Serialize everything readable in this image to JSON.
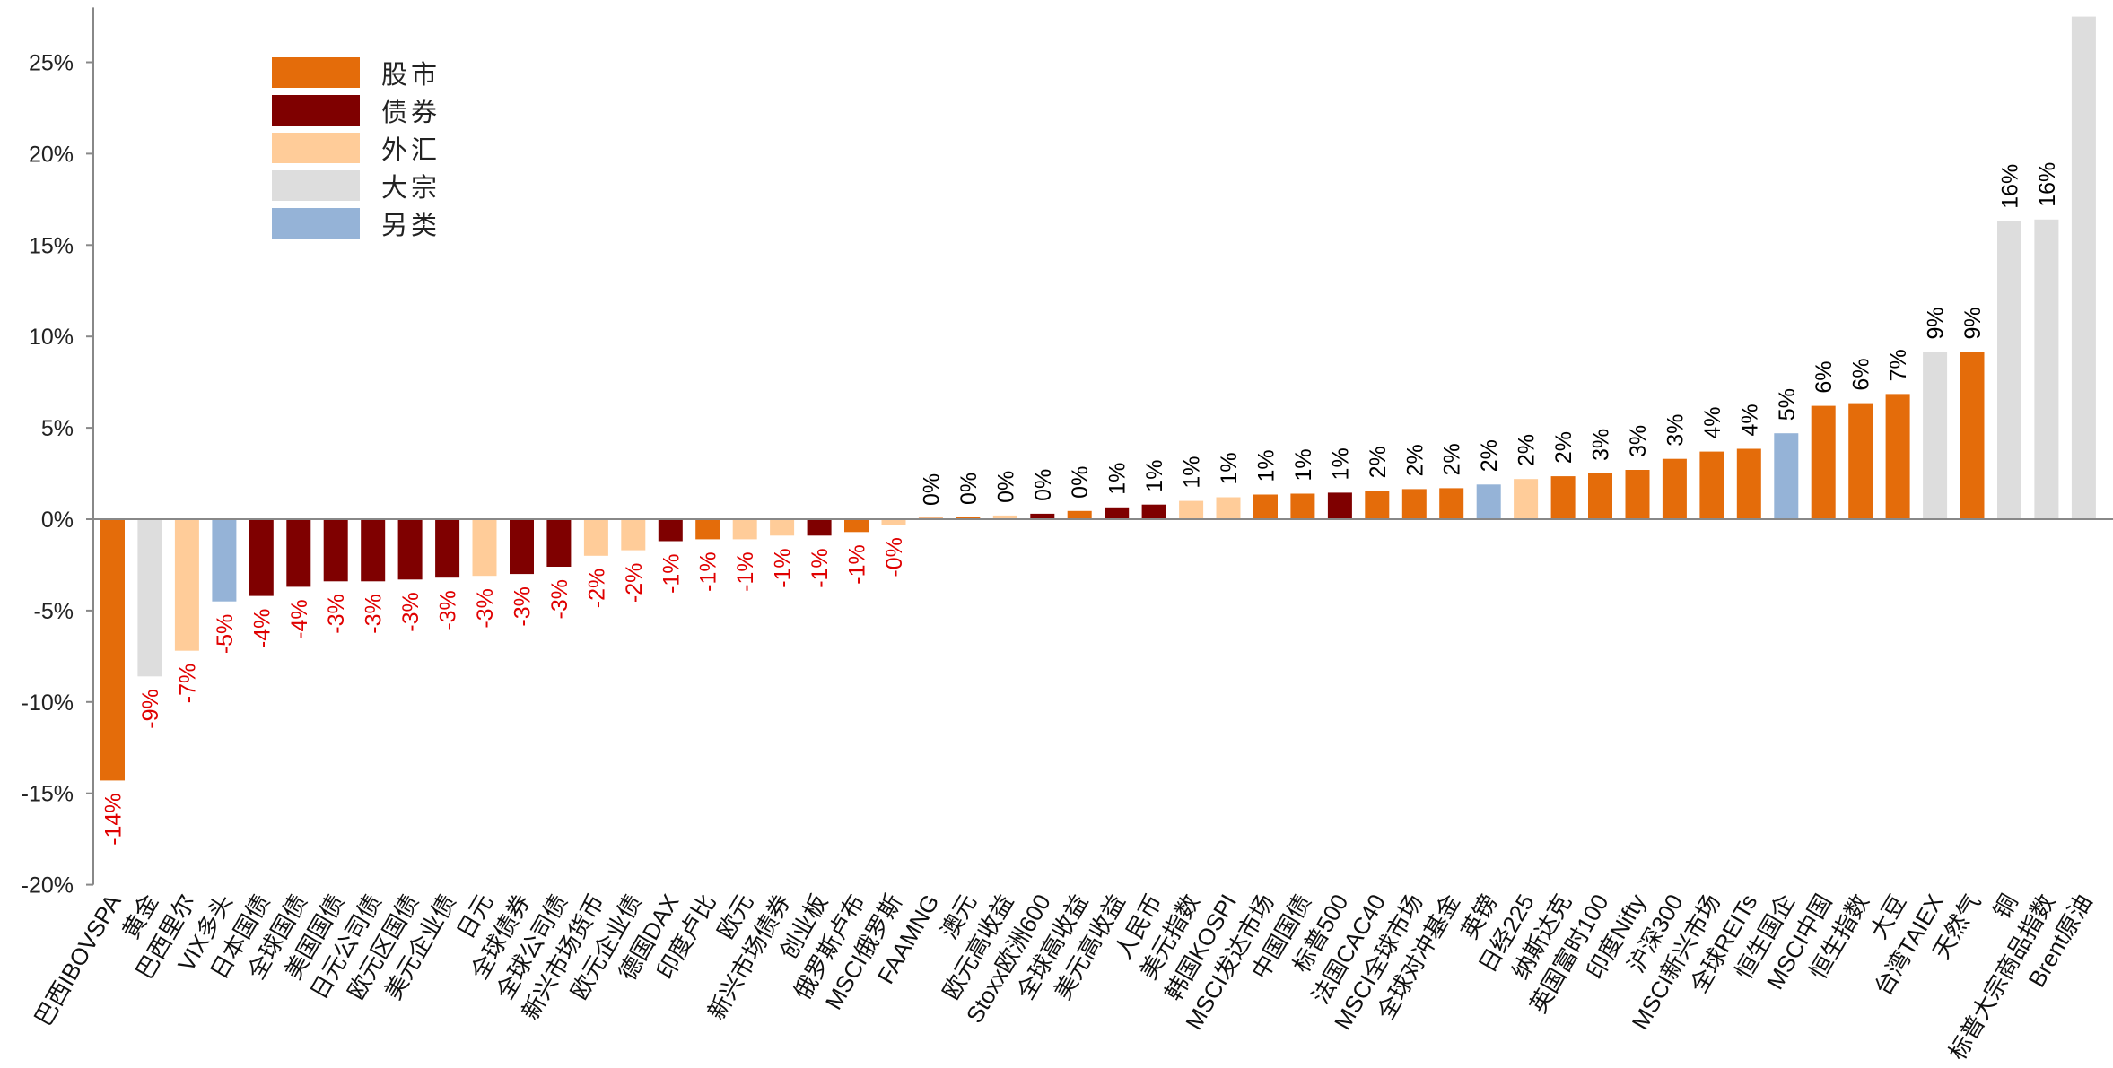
{
  "chart_data": {
    "type": "bar",
    "title": "",
    "xlabel": "",
    "ylabel": "",
    "ylim": [
      -20,
      28
    ],
    "yticks": [
      25,
      20,
      15,
      10,
      5,
      0,
      -5,
      -10,
      -15,
      -20
    ],
    "ytick_labels": [
      "25%",
      "20%",
      "15%",
      "10%",
      "5%",
      "0%",
      "-5%",
      "-10%",
      "-15%",
      "-20%"
    ],
    "categories": [
      "巴西IBOVSPA",
      "黄金",
      "巴西里尔",
      "VIX多头",
      "日本国债",
      "全球国债",
      "美国国债",
      "日元公司债",
      "欧元区国债",
      "美元企业债",
      "日元",
      "全球债券",
      "全球公司债",
      "新兴市场货币",
      "欧元企业债",
      "德国DAX",
      "印度卢比",
      "欧元",
      "新兴市场债券",
      "创业板",
      "俄罗斯卢布",
      "MSCI俄罗斯",
      "FAAMNG",
      "澳元",
      "欧元高收益",
      "Stoxx欧洲600",
      "全球高收益",
      "美元高收益",
      "人民币",
      "美元指数",
      "韩国KOSPI",
      "MSCI发达市场",
      "中国国债",
      "标普500",
      "法国CAC40",
      "MSCI全球市场",
      "全球对冲基金",
      "英镑",
      "日经225",
      "纳斯达克",
      "英国富时100",
      "印度Nifty",
      "沪深300",
      "MSCI新兴市场",
      "全球REITs",
      "恒生国企",
      "MSCI中国",
      "恒生指数",
      "大豆",
      "台湾TAIEX",
      "天然气",
      "铜",
      "标普大宗商品指数",
      "Brent原油"
    ],
    "values": [
      -14.3,
      -8.6,
      -7.2,
      -4.5,
      -4.2,
      -3.7,
      -3.4,
      -3.4,
      -3.3,
      -3.2,
      -3.1,
      -3.0,
      -2.6,
      -2.0,
      -1.7,
      -1.2,
      -1.1,
      -1.1,
      -0.9,
      -0.9,
      -0.7,
      -0.3,
      0.05,
      0.1,
      0.2,
      0.3,
      0.45,
      0.65,
      0.8,
      1.0,
      1.2,
      1.35,
      1.4,
      1.45,
      1.55,
      1.65,
      1.7,
      1.9,
      2.2,
      2.35,
      2.5,
      2.7,
      3.3,
      3.7,
      3.85,
      4.7,
      6.2,
      6.35,
      6.85,
      9.15,
      9.15,
      16.3,
      16.4,
      27.5
    ],
    "data_labels": [
      "-14%",
      "-9%",
      "-7%",
      "-5%",
      "-4%",
      "-4%",
      "-3%",
      "-3%",
      "-3%",
      "-3%",
      "-3%",
      "-3%",
      "-3%",
      "-2%",
      "-2%",
      "-1%",
      "-1%",
      "-1%",
      "-1%",
      "-1%",
      "-1%",
      "-0%",
      "0%",
      "0%",
      "0%",
      "0%",
      "0%",
      "1%",
      "1%",
      "1%",
      "1%",
      "1%",
      "1%",
      "1%",
      "2%",
      "2%",
      "2%",
      "2%",
      "2%",
      "2%",
      "3%",
      "3%",
      "3%",
      "4%",
      "4%",
      "5%",
      "6%",
      "6%",
      "7%",
      "9%",
      "9%",
      "16%",
      "16%",
      ""
    ],
    "asset_class": [
      "equity",
      "commodity",
      "fx",
      "alt",
      "bond",
      "bond",
      "bond",
      "bond",
      "bond",
      "bond",
      "fx",
      "bond",
      "bond",
      "fx",
      "fx",
      "bond",
      "equity",
      "fx",
      "fx",
      "bond",
      "equity",
      "fx",
      "equity",
      "equity",
      "fx",
      "bond",
      "equity",
      "bond",
      "bond",
      "fx",
      "fx",
      "equity",
      "equity",
      "bond",
      "equity",
      "equity",
      "equity",
      "alt",
      "fx",
      "equity",
      "equity",
      "equity",
      "equity",
      "equity",
      "equity",
      "alt",
      "equity",
      "equity",
      "equity",
      "commodity",
      "equity",
      "commodity",
      "commodity",
      "commodity"
    ],
    "colors": {
      "equity": "#E46C0A",
      "bond": "#7F0000",
      "fx": "#FFCC99",
      "commodity": "#DDDDDD",
      "alt": "#95B3D7",
      "positive_label": "#000000",
      "negative_label": "#E00000",
      "axis": "#888888"
    },
    "legend": [
      {
        "key": "equity",
        "label": "股市"
      },
      {
        "key": "bond",
        "label": "债券"
      },
      {
        "key": "fx",
        "label": "外汇"
      },
      {
        "key": "commodity",
        "label": "大宗"
      },
      {
        "key": "alt",
        "label": "另类"
      }
    ]
  }
}
